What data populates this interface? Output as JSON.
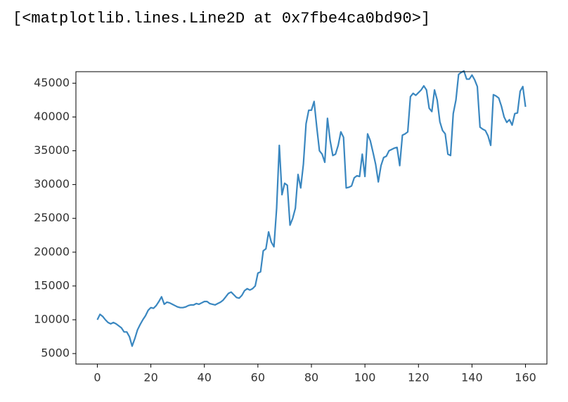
{
  "cell_output": "[<matplotlib.lines.Line2D at 0x7fbe4ca0bd90>]",
  "chart_data": {
    "type": "line",
    "x": [
      0,
      1,
      2,
      3,
      4,
      5,
      6,
      7,
      8,
      9,
      10,
      11,
      12,
      13,
      14,
      15,
      16,
      17,
      18,
      19,
      20,
      21,
      22,
      23,
      24,
      25,
      26,
      27,
      28,
      29,
      30,
      31,
      32,
      33,
      34,
      35,
      36,
      37,
      38,
      39,
      40,
      41,
      42,
      43,
      44,
      45,
      46,
      47,
      48,
      49,
      50,
      51,
      52,
      53,
      54,
      55,
      56,
      57,
      58,
      59,
      60,
      61,
      62,
      63,
      64,
      65,
      66,
      67,
      68,
      69,
      70,
      71,
      72,
      73,
      74,
      75,
      76,
      77,
      78,
      79,
      80,
      81,
      82,
      83,
      84,
      85,
      86,
      87,
      88,
      89,
      90,
      91,
      92,
      93,
      94,
      95,
      96,
      97,
      98,
      99,
      100,
      101,
      102,
      103,
      104,
      105,
      106,
      107,
      108,
      109,
      110,
      111,
      112,
      113,
      114,
      115,
      116,
      117,
      118,
      119,
      120,
      121,
      122,
      123,
      124,
      125,
      126,
      127,
      128,
      129,
      130,
      131,
      132,
      133,
      134,
      135,
      136,
      137,
      138,
      139,
      140,
      141,
      142,
      143,
      144,
      145,
      146,
      147,
      148,
      149,
      150,
      151,
      152,
      153,
      154,
      155,
      156,
      157,
      158,
      159,
      160
    ],
    "values": [
      10000,
      10800,
      10500,
      10000,
      9600,
      9400,
      9600,
      9400,
      9100,
      8800,
      8200,
      8200,
      7500,
      6100,
      7200,
      8500,
      9300,
      10000,
      10600,
      11400,
      11800,
      11700,
      12100,
      12700,
      13400,
      12300,
      12600,
      12500,
      12300,
      12100,
      11900,
      11800,
      11800,
      11900,
      12100,
      12200,
      12200,
      12400,
      12300,
      12500,
      12700,
      12700,
      12400,
      12300,
      12200,
      12400,
      12600,
      12900,
      13400,
      13900,
      14100,
      13700,
      13300,
      13200,
      13600,
      14300,
      14600,
      14400,
      14600,
      15000,
      16900,
      17100,
      20200,
      20500,
      23000,
      21500,
      20800,
      26500,
      35800,
      28500,
      30200,
      29900,
      24000,
      25000,
      26500,
      31500,
      29500,
      33000,
      39000,
      41000,
      41000,
      42300,
      38500,
      35000,
      34500,
      33300,
      39800,
      36500,
      34300,
      34500,
      35800,
      37800,
      37000,
      29500,
      29600,
      29800,
      31000,
      31300,
      31200,
      34500,
      31200,
      37500,
      36500,
      34800,
      33000,
      30400,
      32800,
      34000,
      34200,
      35000,
      35200,
      35400,
      35500,
      32800,
      37300,
      37500,
      37800,
      43000,
      43500,
      43200,
      43600,
      44000,
      44600,
      44000,
      41300,
      40800,
      44000,
      42500,
      39300,
      38000,
      37500,
      34500,
      34300,
      40500,
      42500,
      46300,
      46600,
      46800,
      45600,
      45600,
      46200,
      45500,
      44500,
      38500,
      38200,
      38000,
      37200,
      35800,
      43300,
      43100,
      42800,
      41600,
      40000,
      39200,
      39600,
      38800,
      40500,
      40600,
      43800,
      44500,
      41500
    ],
    "color": "#3a87c0",
    "xlim": [
      -8,
      168
    ],
    "xticks": [
      0,
      20,
      40,
      60,
      80,
      100,
      120,
      140,
      160
    ],
    "ylim": [
      3450,
      46700
    ],
    "yticks": [
      5000,
      10000,
      15000,
      20000,
      25000,
      30000,
      35000,
      40000,
      45000
    ]
  }
}
